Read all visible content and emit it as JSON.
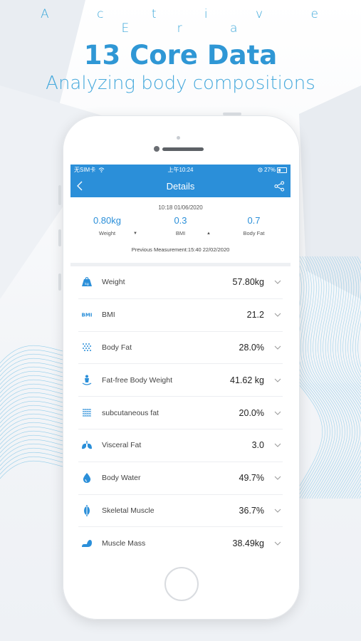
{
  "header": {
    "brand": "A c t i v e E r a",
    "headline": "13 Core Data",
    "subhead": "Analyzing body compositions"
  },
  "status_bar": {
    "carrier": "无SIM卡",
    "time": "上午10:24",
    "battery": "27%"
  },
  "nav": {
    "title": "Details",
    "back_icon": "chevron-left-icon",
    "share_icon": "share-icon"
  },
  "summary": {
    "datetime": "10:18 01/06/2020",
    "metrics": [
      {
        "value": "0.80kg",
        "label": "Weight",
        "trend": "down"
      },
      {
        "value": "0.3",
        "label": "BMI",
        "trend": "up"
      },
      {
        "value": "0.7",
        "label": "Body Fat",
        "trend": ""
      }
    ],
    "previous": "Previous Measurement:15:40 22/02/2020"
  },
  "items": [
    {
      "name": "Weight",
      "value": "57.80kg",
      "icon": "weight-icon"
    },
    {
      "name": "BMI",
      "value": "21.2",
      "icon": "bmi-icon"
    },
    {
      "name": "Body Fat",
      "value": "28.0%",
      "icon": "body-fat-icon"
    },
    {
      "name": "Fat-free Body Weight",
      "value": "41.62 kg",
      "icon": "fat-free-body-icon"
    },
    {
      "name": "subcutaneous fat",
      "value": "20.0%",
      "icon": "subcutaneous-fat-icon"
    },
    {
      "name": "Visceral Fat",
      "value": "3.0",
      "icon": "visceral-fat-icon"
    },
    {
      "name": "Body Water",
      "value": "49.7%",
      "icon": "water-drop-icon"
    },
    {
      "name": "Skeletal Muscle",
      "value": "36.7%",
      "icon": "skeletal-muscle-icon"
    },
    {
      "name": "Muscle Mass",
      "value": "38.49kg",
      "icon": "muscle-mass-icon"
    }
  ],
  "colors": {
    "accent": "#2b8fd9",
    "brand": "#2f97d5"
  }
}
